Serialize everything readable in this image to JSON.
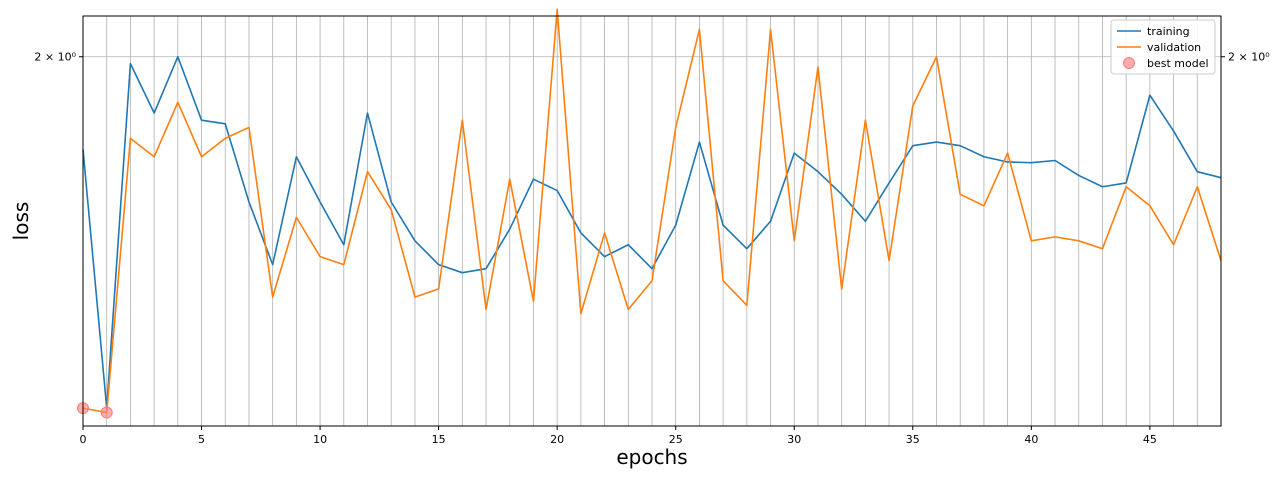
{
  "chart_data": {
    "type": "line",
    "xlabel": "epochs",
    "ylabel": "loss",
    "xlim": [
      0,
      48
    ],
    "ylim": [
      1.53,
      2.06
    ],
    "y_scale": "log",
    "grid": "vertical",
    "legend_position": "top-right",
    "x_ticks": [
      0,
      5,
      10,
      15,
      20,
      25,
      30,
      35,
      40,
      45
    ],
    "y_ticks": [
      {
        "value": 2.0,
        "label": "2 × 10⁰"
      }
    ],
    "x": [
      0,
      1,
      2,
      3,
      4,
      5,
      6,
      7,
      8,
      9,
      10,
      11,
      12,
      13,
      14,
      15,
      16,
      17,
      18,
      19,
      20,
      21,
      22,
      23,
      24,
      25,
      26,
      27,
      28,
      29,
      30,
      31,
      32,
      33,
      34,
      35,
      36,
      37,
      38,
      39,
      40,
      41,
      42,
      43,
      44,
      45,
      46,
      47,
      48
    ],
    "series": [
      {
        "name": "training",
        "color": "#1f77b4",
        "values": [
          1.87,
          1.55,
          1.99,
          1.92,
          2.0,
          1.91,
          1.905,
          1.8,
          1.72,
          1.86,
          1.8,
          1.745,
          1.92,
          1.8,
          1.75,
          1.72,
          1.71,
          1.715,
          1.765,
          1.83,
          1.815,
          1.76,
          1.73,
          1.745,
          1.715,
          1.77,
          1.88,
          1.77,
          1.74,
          1.775,
          1.865,
          1.84,
          1.81,
          1.775,
          1.825,
          1.875,
          1.88,
          1.875,
          1.86,
          1.853,
          1.852,
          1.855,
          1.835,
          1.82,
          1.825,
          1.945,
          1.895,
          1.84,
          1.832
        ]
      },
      {
        "name": "validation",
        "color": "#ff7f0e",
        "values": [
          1.55,
          1.545,
          1.885,
          1.86,
          1.935,
          1.86,
          1.885,
          1.9,
          1.68,
          1.78,
          1.73,
          1.72,
          1.84,
          1.79,
          1.68,
          1.69,
          1.91,
          1.665,
          1.83,
          1.675,
          2.07,
          1.66,
          1.76,
          1.665,
          1.7,
          1.9,
          2.04,
          1.7,
          1.67,
          2.04,
          1.75,
          1.985,
          1.69,
          1.91,
          1.725,
          1.93,
          2.0,
          1.81,
          1.795,
          1.865,
          1.75,
          1.755,
          1.75,
          1.74,
          1.82,
          1.795,
          1.745,
          1.82,
          1.725
        ]
      }
    ],
    "markers": {
      "name": "best model",
      "color": "#ff7f7f",
      "points": [
        {
          "x": 0,
          "y": 1.55
        },
        {
          "x": 1,
          "y": 1.545
        }
      ]
    }
  }
}
